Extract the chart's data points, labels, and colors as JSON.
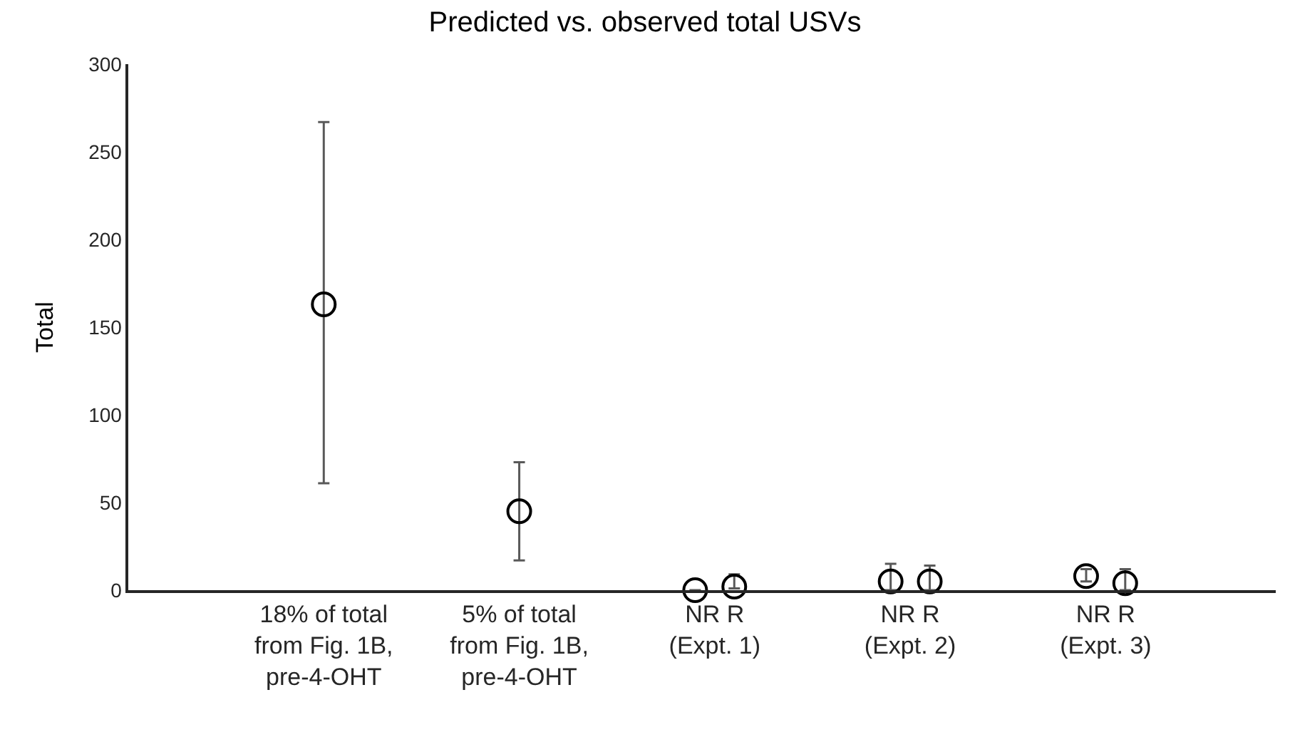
{
  "chart_data": {
    "type": "scatter",
    "title": "Predicted vs. observed total USVs",
    "ylabel": "Total",
    "categories": [
      "18% of total\nfrom Fig. 1B,\npre-4-OHT",
      "5% of total\nfrom Fig. 1B,\npre-4-OHT",
      "NR R\n(Expt. 1)",
      "NR R\n(Expt. 2)",
      "NR R\n(Expt. 3)"
    ],
    "series": [
      {
        "color": "#000000",
        "values": [
          163,
          45,
          0,
          5,
          8
        ],
        "errors": [
          [
            61,
            267
          ],
          [
            17,
            73
          ],
          null,
          [
            0,
            15
          ],
          [
            5,
            12
          ]
        ]
      },
      {
        "color": "#000000",
        "values": [
          null,
          null,
          2,
          5,
          4
        ],
        "errors": [
          null,
          null,
          [
            1,
            9
          ],
          [
            0,
            14
          ],
          [
            0,
            12
          ]
        ]
      }
    ],
    "marker": "circle",
    "grid": false,
    "ylim": [
      0,
      300
    ],
    "yticks": [
      0,
      50,
      100,
      150,
      200,
      250,
      300
    ]
  }
}
